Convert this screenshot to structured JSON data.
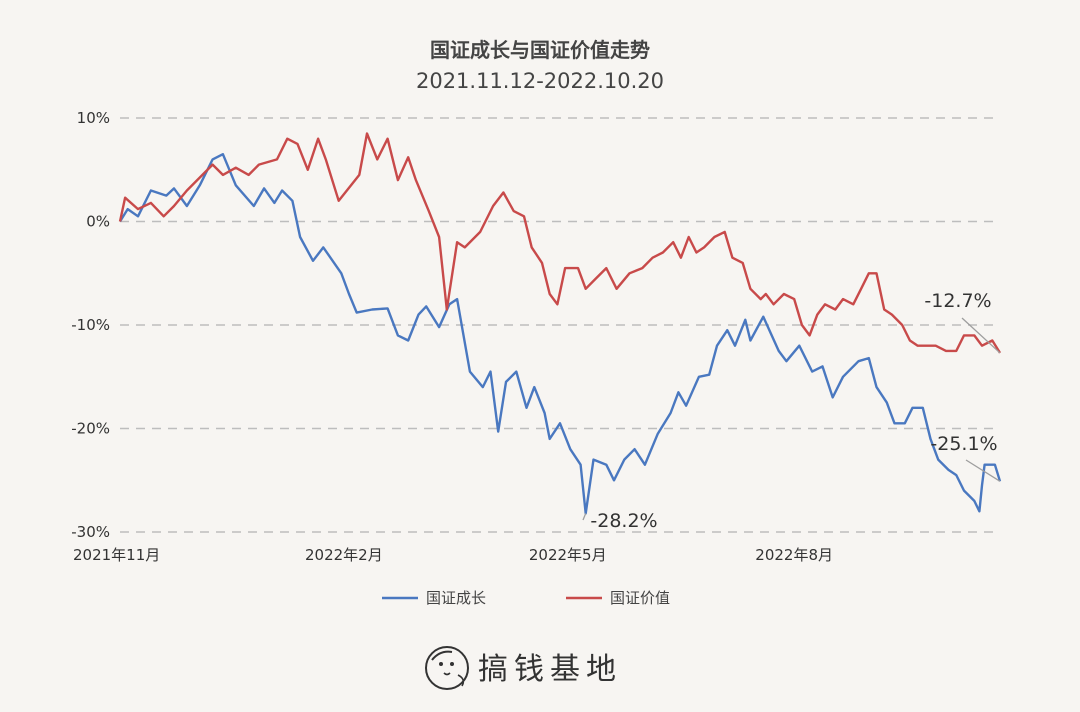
{
  "chart_data": {
    "type": "line",
    "title": "国证成长与国证价值走势",
    "subtitle": "2021.11.12-2022.10.20",
    "xlabel": "",
    "ylabel": "",
    "ylim": [
      -30,
      10
    ],
    "y_ticks": [
      {
        "value": 10,
        "label": "10%"
      },
      {
        "value": 0,
        "label": "0%"
      },
      {
        "value": -10,
        "label": "-10%"
      },
      {
        "value": -20,
        "label": "-20%"
      },
      {
        "value": -30,
        "label": "-30%"
      }
    ],
    "x_range": [
      "2021-11-12",
      "2022-10-20"
    ],
    "x_ticks": [
      {
        "date": "2021-11-12",
        "label": "2021年11月"
      },
      {
        "date": "2022-02-07",
        "label": "2022年2月"
      },
      {
        "date": "2022-05-05",
        "label": "2022年5月"
      },
      {
        "date": "2022-08-01",
        "label": "2022年8月"
      }
    ],
    "grid": "horizontal-dashed",
    "legend_position": "bottom",
    "series": [
      {
        "name": "国证成长",
        "color": "#4a78c0",
        "points": [
          [
            "2021-11-12",
            0.0
          ],
          [
            "2021-11-15",
            1.2
          ],
          [
            "2021-11-19",
            0.5
          ],
          [
            "2021-11-24",
            3.0
          ],
          [
            "2021-11-30",
            2.5
          ],
          [
            "2021-12-03",
            3.2
          ],
          [
            "2021-12-08",
            1.5
          ],
          [
            "2021-12-13",
            3.5
          ],
          [
            "2021-12-18",
            6.0
          ],
          [
            "2021-12-22",
            6.5
          ],
          [
            "2021-12-27",
            3.5
          ],
          [
            "2022-01-03",
            1.5
          ],
          [
            "2022-01-07",
            3.2
          ],
          [
            "2022-01-11",
            1.8
          ],
          [
            "2022-01-14",
            3.0
          ],
          [
            "2022-01-18",
            2.0
          ],
          [
            "2022-01-21",
            -1.5
          ],
          [
            "2022-01-26",
            -3.8
          ],
          [
            "2022-01-30",
            -2.5
          ],
          [
            "2022-02-06",
            -5.0
          ],
          [
            "2022-02-09",
            -7.0
          ],
          [
            "2022-02-12",
            -8.8
          ],
          [
            "2022-02-18",
            -8.5
          ],
          [
            "2022-02-24",
            -8.4
          ],
          [
            "2022-02-28",
            -11.0
          ],
          [
            "2022-03-04",
            -11.5
          ],
          [
            "2022-03-08",
            -9.0
          ],
          [
            "2022-03-11",
            -8.2
          ],
          [
            "2022-03-16",
            -10.2
          ],
          [
            "2022-03-20",
            -8.0
          ],
          [
            "2022-03-23",
            -7.5
          ],
          [
            "2022-03-28",
            -14.5
          ],
          [
            "2022-04-02",
            -16.0
          ],
          [
            "2022-04-05",
            -14.5
          ],
          [
            "2022-04-08",
            -20.3
          ],
          [
            "2022-04-11",
            -15.5
          ],
          [
            "2022-04-15",
            -14.5
          ],
          [
            "2022-04-19",
            -18.0
          ],
          [
            "2022-04-22",
            -16.0
          ],
          [
            "2022-04-26",
            -18.5
          ],
          [
            "2022-04-28",
            -21.0
          ],
          [
            "2022-05-02",
            -19.5
          ],
          [
            "2022-05-06",
            -22.0
          ],
          [
            "2022-05-10",
            -23.5
          ],
          [
            "2022-05-12",
            -28.2
          ],
          [
            "2022-05-15",
            -23.0
          ],
          [
            "2022-05-20",
            -23.5
          ],
          [
            "2022-05-23",
            -25.0
          ],
          [
            "2022-05-27",
            -23.0
          ],
          [
            "2022-05-31",
            -22.0
          ],
          [
            "2022-06-04",
            -23.5
          ],
          [
            "2022-06-09",
            -20.5
          ],
          [
            "2022-06-14",
            -18.5
          ],
          [
            "2022-06-17",
            -16.5
          ],
          [
            "2022-06-20",
            -17.8
          ],
          [
            "2022-06-25",
            -15.0
          ],
          [
            "2022-06-29",
            -14.8
          ],
          [
            "2022-07-02",
            -12.0
          ],
          [
            "2022-07-06",
            -10.5
          ],
          [
            "2022-07-09",
            -12.0
          ],
          [
            "2022-07-13",
            -9.5
          ],
          [
            "2022-07-15",
            -11.5
          ],
          [
            "2022-07-20",
            -9.2
          ],
          [
            "2022-07-26",
            -12.5
          ],
          [
            "2022-07-29",
            -13.5
          ],
          [
            "2022-08-03",
            -12.0
          ],
          [
            "2022-08-08",
            -14.5
          ],
          [
            "2022-08-12",
            -14.0
          ],
          [
            "2022-08-16",
            -17.0
          ],
          [
            "2022-08-20",
            -15.0
          ],
          [
            "2022-08-26",
            -13.5
          ],
          [
            "2022-08-30",
            -13.2
          ],
          [
            "2022-09-02",
            -16.0
          ],
          [
            "2022-09-06",
            -17.5
          ],
          [
            "2022-09-09",
            -19.5
          ],
          [
            "2022-09-13",
            -19.5
          ],
          [
            "2022-09-16",
            -18.0
          ],
          [
            "2022-09-20",
            -18.0
          ],
          [
            "2022-09-23",
            -21.0
          ],
          [
            "2022-09-26",
            -23.0
          ],
          [
            "2022-09-30",
            -24.0
          ],
          [
            "2022-10-03",
            -24.5
          ],
          [
            "2022-10-06",
            -26.0
          ],
          [
            "2022-10-10",
            -27.0
          ],
          [
            "2022-10-12",
            -28.0
          ],
          [
            "2022-10-13",
            -25.5
          ],
          [
            "2022-10-14",
            -23.5
          ],
          [
            "2022-10-18",
            -23.5
          ],
          [
            "2022-10-20",
            -25.1
          ]
        ]
      },
      {
        "name": "国证价值",
        "color": "#c84a4a",
        "points": [
          [
            "2021-11-12",
            0.0
          ],
          [
            "2021-11-14",
            2.3
          ],
          [
            "2021-11-19",
            1.2
          ],
          [
            "2021-11-24",
            1.8
          ],
          [
            "2021-11-29",
            0.5
          ],
          [
            "2021-12-03",
            1.5
          ],
          [
            "2021-12-08",
            3.0
          ],
          [
            "2021-12-12",
            4.0
          ],
          [
            "2021-12-18",
            5.5
          ],
          [
            "2021-12-22",
            4.5
          ],
          [
            "2021-12-27",
            5.2
          ],
          [
            "2022-01-01",
            4.5
          ],
          [
            "2022-01-05",
            5.5
          ],
          [
            "2022-01-12",
            6.0
          ],
          [
            "2022-01-16",
            8.0
          ],
          [
            "2022-01-20",
            7.5
          ],
          [
            "2022-01-24",
            5.0
          ],
          [
            "2022-01-28",
            8.0
          ],
          [
            "2022-01-31",
            6.0
          ],
          [
            "2022-02-05",
            2.0
          ],
          [
            "2022-02-13",
            4.5
          ],
          [
            "2022-02-16",
            8.5
          ],
          [
            "2022-02-20",
            6.0
          ],
          [
            "2022-02-24",
            8.0
          ],
          [
            "2022-02-28",
            4.0
          ],
          [
            "2022-03-04",
            6.2
          ],
          [
            "2022-03-07",
            4.0
          ],
          [
            "2022-03-12",
            1.0
          ],
          [
            "2022-03-16",
            -1.5
          ],
          [
            "2022-03-19",
            -8.5
          ],
          [
            "2022-03-23",
            -2.0
          ],
          [
            "2022-03-26",
            -2.5
          ],
          [
            "2022-04-01",
            -1.0
          ],
          [
            "2022-04-06",
            1.5
          ],
          [
            "2022-04-10",
            2.8
          ],
          [
            "2022-04-14",
            1.0
          ],
          [
            "2022-04-18",
            0.5
          ],
          [
            "2022-04-21",
            -2.5
          ],
          [
            "2022-04-25",
            -4.0
          ],
          [
            "2022-04-28",
            -7.0
          ],
          [
            "2022-05-01",
            -8.0
          ],
          [
            "2022-05-04",
            -4.5
          ],
          [
            "2022-05-09",
            -4.5
          ],
          [
            "2022-05-12",
            -6.5
          ],
          [
            "2022-05-16",
            -5.5
          ],
          [
            "2022-05-20",
            -4.5
          ],
          [
            "2022-05-24",
            -6.5
          ],
          [
            "2022-05-29",
            -5.0
          ],
          [
            "2022-06-03",
            -4.5
          ],
          [
            "2022-06-07",
            -3.5
          ],
          [
            "2022-06-11",
            -3.0
          ],
          [
            "2022-06-15",
            -2.0
          ],
          [
            "2022-06-18",
            -3.5
          ],
          [
            "2022-06-21",
            -1.5
          ],
          [
            "2022-06-24",
            -3.0
          ],
          [
            "2022-06-27",
            -2.5
          ],
          [
            "2022-07-01",
            -1.5
          ],
          [
            "2022-07-05",
            -1.0
          ],
          [
            "2022-07-08",
            -3.5
          ],
          [
            "2022-07-12",
            -4.0
          ],
          [
            "2022-07-15",
            -6.5
          ],
          [
            "2022-07-19",
            -7.5
          ],
          [
            "2022-07-21",
            -7.0
          ],
          [
            "2022-07-24",
            -8.0
          ],
          [
            "2022-07-28",
            -7.0
          ],
          [
            "2022-08-01",
            -7.5
          ],
          [
            "2022-08-04",
            -10.0
          ],
          [
            "2022-08-07",
            -11.0
          ],
          [
            "2022-08-10",
            -9.0
          ],
          [
            "2022-08-13",
            -8.0
          ],
          [
            "2022-08-17",
            -8.5
          ],
          [
            "2022-08-20",
            -7.5
          ],
          [
            "2022-08-24",
            -8.0
          ],
          [
            "2022-08-27",
            -6.5
          ],
          [
            "2022-08-30",
            -5.0
          ],
          [
            "2022-09-02",
            -5.0
          ],
          [
            "2022-09-05",
            -8.5
          ],
          [
            "2022-09-08",
            -9.0
          ],
          [
            "2022-09-12",
            -10.0
          ],
          [
            "2022-09-15",
            -11.5
          ],
          [
            "2022-09-18",
            -12.0
          ],
          [
            "2022-09-22",
            -12.0
          ],
          [
            "2022-09-25",
            -12.0
          ],
          [
            "2022-09-29",
            -12.5
          ],
          [
            "2022-10-03",
            -12.5
          ],
          [
            "2022-10-06",
            -11.0
          ],
          [
            "2022-10-10",
            -11.0
          ],
          [
            "2022-10-13",
            -12.0
          ],
          [
            "2022-10-17",
            -11.5
          ],
          [
            "2022-10-20",
            -12.7
          ]
        ]
      }
    ],
    "annotations": [
      {
        "series": "国证价值",
        "date": "2022-10-20",
        "value": -12.7,
        "label": "-12.7%"
      },
      {
        "series": "国证成长",
        "date": "2022-10-20",
        "value": -25.1,
        "label": "-25.1%"
      },
      {
        "series": "国证成长",
        "date": "2022-05-12",
        "value": -28.2,
        "label": "-28.2%"
      }
    ]
  },
  "brand": {
    "text": "搞钱基地",
    "logo_icon": "cartoon-face-icon"
  }
}
